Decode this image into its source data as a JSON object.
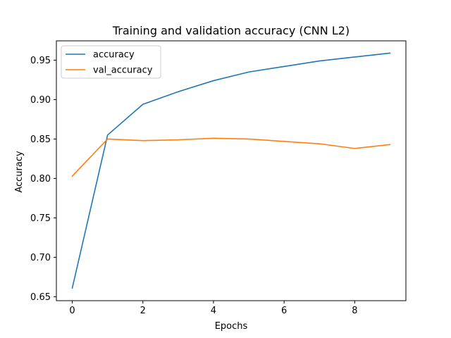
{
  "chart_data": {
    "type": "line",
    "title": "Training and validation accuracy (CNN L2)",
    "xlabel": "Epochs",
    "ylabel": "Accuracy",
    "x": [
      0,
      1,
      2,
      3,
      4,
      5,
      6,
      7,
      8,
      9
    ],
    "xlim": [
      -0.45,
      9.45
    ],
    "ylim": [
      0.645,
      0.9745
    ],
    "xticks": [
      0,
      2,
      4,
      6,
      8
    ],
    "yticks": [
      0.65,
      0.7,
      0.75,
      0.8,
      0.85,
      0.9,
      0.95
    ],
    "grid": false,
    "legend_position": "top-left",
    "series": [
      {
        "name": "accuracy",
        "color": "#1f77b4",
        "values": [
          0.661,
          0.855,
          0.894,
          0.91,
          0.924,
          0.935,
          0.942,
          0.949,
          0.954,
          0.959
        ]
      },
      {
        "name": "val_accuracy",
        "color": "#ff7f0e",
        "values": [
          0.803,
          0.85,
          0.848,
          0.849,
          0.851,
          0.85,
          0.847,
          0.844,
          0.838,
          0.843
        ]
      }
    ]
  }
}
